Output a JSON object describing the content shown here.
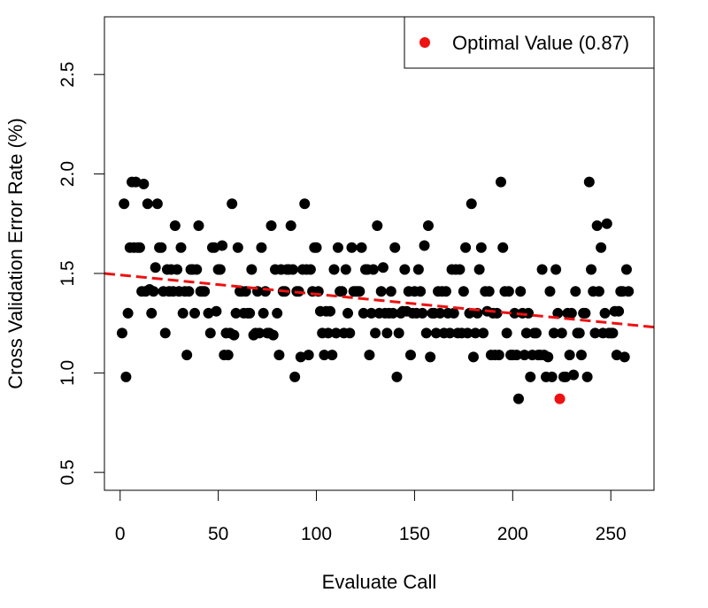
{
  "chart_data": {
    "type": "scatter",
    "title": "",
    "xlabel": "Evaluate Call",
    "ylabel": "Cross Validation Error Rate (%)",
    "xlim": [
      -8,
      272
    ],
    "ylim": [
      0.41,
      2.79
    ],
    "x_ticks": [
      0,
      50,
      100,
      150,
      200,
      250
    ],
    "x_tick_labels": [
      "0",
      "50",
      "100",
      "150",
      "200",
      "250"
    ],
    "y_ticks": [
      0.5,
      1.0,
      1.5,
      2.0,
      2.5
    ],
    "y_tick_labels": [
      "0.5",
      "1.0",
      "1.5",
      "2.0",
      "2.5"
    ],
    "grid": false,
    "legend": {
      "position": "top-right",
      "entries": [
        {
          "label": "Optimal Value (0.87)",
          "color": "#ee1111",
          "marker": "circle"
        }
      ]
    },
    "colors": {
      "points": "#000000",
      "optimal": "#ee1111",
      "trend": "#ee1111"
    },
    "series": [
      {
        "marker": "circle",
        "color": "#000000",
        "points": [
          [
            1,
            1.2
          ],
          [
            2,
            1.85
          ],
          [
            3,
            0.98
          ],
          [
            4,
            1.3
          ],
          [
            5,
            1.63
          ],
          [
            6,
            1.96
          ],
          [
            7,
            1.63
          ],
          [
            8,
            1.96
          ],
          [
            9,
            1.63
          ],
          [
            10,
            1.63
          ],
          [
            11,
            1.41
          ],
          [
            12,
            1.95
          ],
          [
            13,
            1.41
          ],
          [
            14,
            1.85
          ],
          [
            15,
            1.42
          ],
          [
            16,
            1.3
          ],
          [
            17,
            1.41
          ],
          [
            18,
            1.53
          ],
          [
            19,
            1.85
          ],
          [
            20,
            1.63
          ],
          [
            21,
            1.63
          ],
          [
            22,
            1.41
          ],
          [
            23,
            1.2
          ],
          [
            24,
            1.52
          ],
          [
            25,
            1.41
          ],
          [
            26,
            1.52
          ],
          [
            27,
            1.41
          ],
          [
            28,
            1.74
          ],
          [
            29,
            1.52
          ],
          [
            30,
            1.41
          ],
          [
            31,
            1.63
          ],
          [
            32,
            1.3
          ],
          [
            33,
            1.41
          ],
          [
            34,
            1.09
          ],
          [
            35,
            1.41
          ],
          [
            36,
            1.52
          ],
          [
            37,
            1.52
          ],
          [
            38,
            1.3
          ],
          [
            39,
            1.52
          ],
          [
            40,
            1.74
          ],
          [
            41,
            1.41
          ],
          [
            42,
            1.41
          ],
          [
            43,
            1.41
          ],
          [
            45,
            1.3
          ],
          [
            46,
            1.2
          ],
          [
            47,
            1.63
          ],
          [
            48,
            1.63
          ],
          [
            49,
            1.31
          ],
          [
            50,
            1.52
          ],
          [
            51,
            1.52
          ],
          [
            52,
            1.64
          ],
          [
            53,
            1.09
          ],
          [
            54,
            1.2
          ],
          [
            55,
            1.09
          ],
          [
            56,
            1.2
          ],
          [
            57,
            1.85
          ],
          [
            58,
            1.19
          ],
          [
            59,
            1.3
          ],
          [
            60,
            1.63
          ],
          [
            61,
            1.41
          ],
          [
            62,
            1.41
          ],
          [
            63,
            1.3
          ],
          [
            64,
            1.41
          ],
          [
            65,
            1.3
          ],
          [
            66,
            1.3
          ],
          [
            67,
            1.52
          ],
          [
            68,
            1.19
          ],
          [
            69,
            1.2
          ],
          [
            70,
            1.41
          ],
          [
            71,
            1.2
          ],
          [
            72,
            1.63
          ],
          [
            73,
            1.3
          ],
          [
            74,
            1.41
          ],
          [
            75,
            1.2
          ],
          [
            76,
            1.2
          ],
          [
            77,
            1.74
          ],
          [
            78,
            1.19
          ],
          [
            79,
            1.52
          ],
          [
            80,
            1.3
          ],
          [
            81,
            1.09
          ],
          [
            82,
            1.52
          ],
          [
            83,
            1.41
          ],
          [
            84,
            1.41
          ],
          [
            85,
            1.52
          ],
          [
            86,
            1.52
          ],
          [
            87,
            1.74
          ],
          [
            88,
            1.52
          ],
          [
            89,
            0.98
          ],
          [
            90,
            1.41
          ],
          [
            91,
            1.41
          ],
          [
            92,
            1.08
          ],
          [
            93,
            1.52
          ],
          [
            94,
            1.85
          ],
          [
            95,
            1.52
          ],
          [
            96,
            1.09
          ],
          [
            97,
            1.52
          ],
          [
            98,
            1.41
          ],
          [
            99,
            1.63
          ],
          [
            100,
            1.63
          ],
          [
            101,
            1.41
          ],
          [
            102,
            1.31
          ],
          [
            103,
            1.2
          ],
          [
            104,
            1.09
          ],
          [
            105,
            1.31
          ],
          [
            106,
            1.2
          ],
          [
            107,
            1.31
          ],
          [
            108,
            1.09
          ],
          [
            109,
            1.52
          ],
          [
            110,
            1.2
          ],
          [
            111,
            1.63
          ],
          [
            112,
            1.41
          ],
          [
            113,
            1.41
          ],
          [
            114,
            1.2
          ],
          [
            115,
            1.52
          ],
          [
            116,
            1.3
          ],
          [
            117,
            1.2
          ],
          [
            118,
            1.63
          ],
          [
            119,
            1.41
          ],
          [
            120,
            1.41
          ],
          [
            121,
            1.41
          ],
          [
            122,
            1.41
          ],
          [
            123,
            1.63
          ],
          [
            124,
            1.3
          ],
          [
            125,
            1.52
          ],
          [
            126,
            1.52
          ],
          [
            127,
            1.09
          ],
          [
            128,
            1.3
          ],
          [
            129,
            1.52
          ],
          [
            130,
            1.2
          ],
          [
            131,
            1.74
          ],
          [
            132,
            1.3
          ],
          [
            133,
            1.41
          ],
          [
            134,
            1.53
          ],
          [
            135,
            1.3
          ],
          [
            136,
            1.2
          ],
          [
            137,
            1.3
          ],
          [
            138,
            1.41
          ],
          [
            139,
            1.3
          ],
          [
            140,
            1.63
          ],
          [
            141,
            0.98
          ],
          [
            142,
            1.2
          ],
          [
            143,
            1.3
          ],
          [
            144,
            1.31
          ],
          [
            145,
            1.52
          ],
          [
            146,
            1.31
          ],
          [
            147,
            1.41
          ],
          [
            148,
            1.09
          ],
          [
            149,
            1.3
          ],
          [
            150,
            1.41
          ],
          [
            151,
            1.3
          ],
          [
            152,
            1.52
          ],
          [
            153,
            1.41
          ],
          [
            154,
            1.3
          ],
          [
            155,
            1.64
          ],
          [
            156,
            1.2
          ],
          [
            157,
            1.74
          ],
          [
            158,
            1.08
          ],
          [
            159,
            1.3
          ],
          [
            160,
            1.3
          ],
          [
            161,
            1.2
          ],
          [
            162,
            1.41
          ],
          [
            163,
            1.3
          ],
          [
            164,
            1.41
          ],
          [
            165,
            1.2
          ],
          [
            166,
            1.41
          ],
          [
            167,
            1.3
          ],
          [
            168,
            1.2
          ],
          [
            169,
            1.52
          ],
          [
            170,
            1.3
          ],
          [
            171,
            1.52
          ],
          [
            172,
            1.2
          ],
          [
            173,
            1.52
          ],
          [
            174,
            1.2
          ],
          [
            175,
            1.41
          ],
          [
            176,
            1.63
          ],
          [
            177,
            1.2
          ],
          [
            178,
            1.3
          ],
          [
            179,
            1.85
          ],
          [
            180,
            1.08
          ],
          [
            181,
            1.2
          ],
          [
            182,
            1.3
          ],
          [
            183,
            1.52
          ],
          [
            184,
            1.63
          ],
          [
            185,
            1.2
          ],
          [
            186,
            1.41
          ],
          [
            187,
            1.31
          ],
          [
            188,
            1.41
          ],
          [
            189,
            1.09
          ],
          [
            190,
            1.3
          ],
          [
            191,
            1.09
          ],
          [
            192,
            1.3
          ],
          [
            193,
            1.09
          ],
          [
            194,
            1.96
          ],
          [
            195,
            1.63
          ],
          [
            196,
            1.41
          ],
          [
            197,
            1.2
          ],
          [
            198,
            1.41
          ],
          [
            199,
            1.09
          ],
          [
            200,
            1.09
          ],
          [
            201,
            1.3
          ],
          [
            202,
            1.09
          ],
          [
            203,
            0.87
          ],
          [
            204,
            1.41
          ],
          [
            205,
            1.3
          ],
          [
            206,
            1.09
          ],
          [
            207,
            1.2
          ],
          [
            208,
            1.3
          ],
          [
            209,
            0.98
          ],
          [
            210,
            1.09
          ],
          [
            211,
            1.2
          ],
          [
            212,
            1.2
          ],
          [
            213,
            1.09
          ],
          [
            214,
            1.09
          ],
          [
            215,
            1.52
          ],
          [
            216,
            1.09
          ],
          [
            217,
            0.98
          ],
          [
            218,
            1.08
          ],
          [
            219,
            1.41
          ],
          [
            220,
            0.98
          ],
          [
            221,
            1.2
          ],
          [
            222,
            1.52
          ],
          [
            223,
            1.3
          ],
          [
            225,
            1.2
          ],
          [
            226,
            0.98
          ],
          [
            227,
            0.98
          ],
          [
            228,
            1.3
          ],
          [
            229,
            1.09
          ],
          [
            230,
            1.3
          ],
          [
            231,
            0.99
          ],
          [
            232,
            1.41
          ],
          [
            233,
            1.2
          ],
          [
            234,
            1.2
          ],
          [
            235,
            1.09
          ],
          [
            236,
            1.3
          ],
          [
            237,
            1.3
          ],
          [
            238,
            0.98
          ],
          [
            239,
            1.96
          ],
          [
            240,
            1.52
          ],
          [
            241,
            1.41
          ],
          [
            242,
            1.2
          ],
          [
            243,
            1.74
          ],
          [
            244,
            1.41
          ],
          [
            245,
            1.63
          ],
          [
            246,
            1.2
          ],
          [
            247,
            1.3
          ],
          [
            248,
            1.75
          ],
          [
            249,
            1.2
          ],
          [
            250,
            1.2
          ],
          [
            251,
            1.2
          ],
          [
            252,
            1.31
          ],
          [
            253,
            1.09
          ],
          [
            254,
            1.31
          ],
          [
            255,
            1.41
          ],
          [
            256,
            1.41
          ],
          [
            257,
            1.08
          ],
          [
            258,
            1.52
          ],
          [
            259,
            1.41
          ]
        ]
      },
      {
        "name": "Optimal Value (0.87)",
        "marker": "circle",
        "color": "#ee1111",
        "points": [
          [
            224,
            0.87
          ]
        ]
      }
    ],
    "trend_line": {
      "style": "dashed",
      "color": "#ee1111",
      "x": [
        -8,
        272
      ],
      "y": [
        1.5,
        1.23
      ]
    }
  }
}
